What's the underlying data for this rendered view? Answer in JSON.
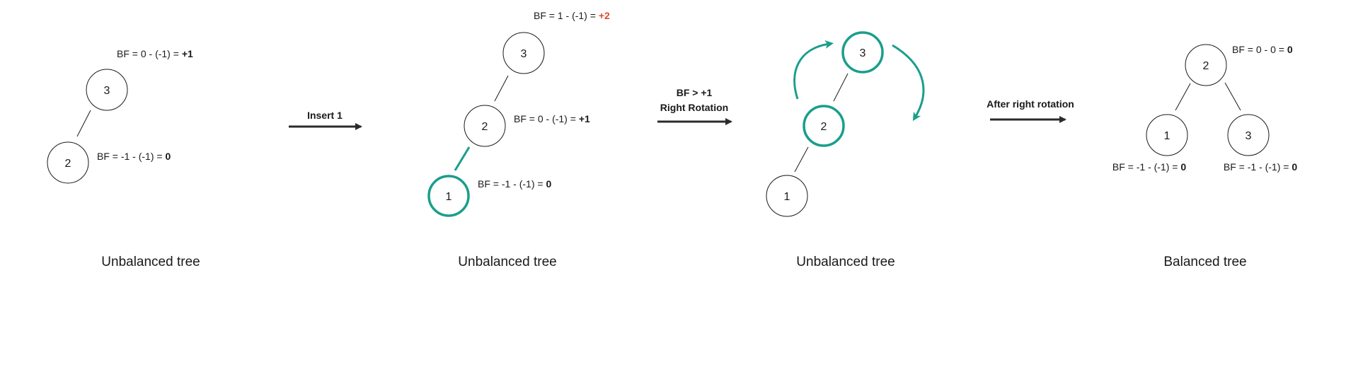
{
  "colors": {
    "accent": "#1a9e8c",
    "warning": "#e04a2f",
    "ink": "#1a1a1a"
  },
  "stage1": {
    "caption": "Unbalanced tree",
    "node_3": "3",
    "node_2": "2",
    "bf_3_prefix": "BF = 0 - (-1) = ",
    "bf_3_value": "+1",
    "bf_2_prefix": "BF = -1 - (-1) = ",
    "bf_2_value": "0"
  },
  "arrow1": {
    "label": "Insert 1"
  },
  "stage2": {
    "caption": "Unbalanced tree",
    "node_3": "3",
    "node_2": "2",
    "node_1": "1",
    "bf_3_prefix": "BF = 1 - (-1) = ",
    "bf_3_value": "+2",
    "bf_2_prefix": "BF = 0 - (-1) = ",
    "bf_2_value": "+1",
    "bf_1_prefix": "BF = -1 - (-1) = ",
    "bf_1_value": "0"
  },
  "arrow2": {
    "condition": "BF > +1",
    "label": "Right Rotation"
  },
  "stage3": {
    "caption": "Unbalanced tree",
    "node_3": "3",
    "node_2": "2",
    "node_1": "1"
  },
  "arrow3": {
    "label": "After right rotation"
  },
  "stage4": {
    "caption": "Balanced tree",
    "node_2": "2",
    "node_1": "1",
    "node_3": "3",
    "bf_2_prefix": "BF = 0 - 0 = ",
    "bf_2_value": "0",
    "bf_1_prefix": "BF = -1 - (-1) = ",
    "bf_1_value": "0",
    "bf_3_prefix": "BF = -1 - (-1) = ",
    "bf_3_value": "0"
  }
}
